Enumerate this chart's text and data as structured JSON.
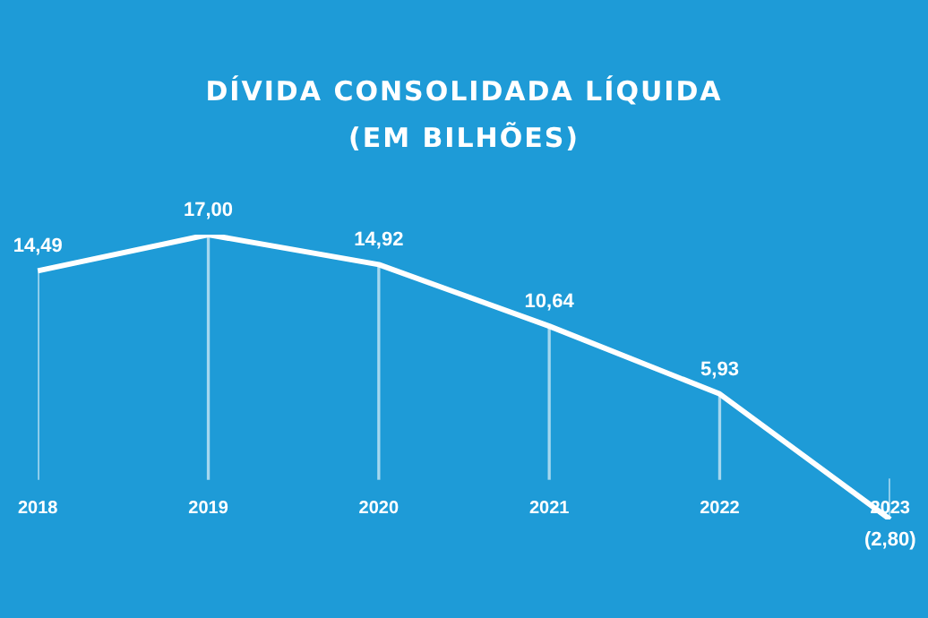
{
  "chart_data": {
    "type": "line",
    "title": "DÍVIDA CONSOLIDADA LÍQUIDA (EM BILHÕES)",
    "categories": [
      "2018",
      "2019",
      "2020",
      "2021",
      "2022",
      "2023"
    ],
    "series": [
      {
        "color": "#ffffff",
        "values": [
          14.49,
          17.0,
          14.92,
          10.64,
          5.93,
          -2.8
        ],
        "value_labels": [
          "14,49",
          "17,00",
          "14,92",
          "10,64",
          "5,93",
          "(2,80)"
        ]
      },
      {
        "type": "bar",
        "color": "#ffffff",
        "values": [
          14.49,
          17.0,
          14.92,
          10.64,
          5.93,
          -2.8
        ]
      }
    ],
    "marker": "none",
    "grid": false,
    "legend": false,
    "tick_labels": "x"
  }
}
